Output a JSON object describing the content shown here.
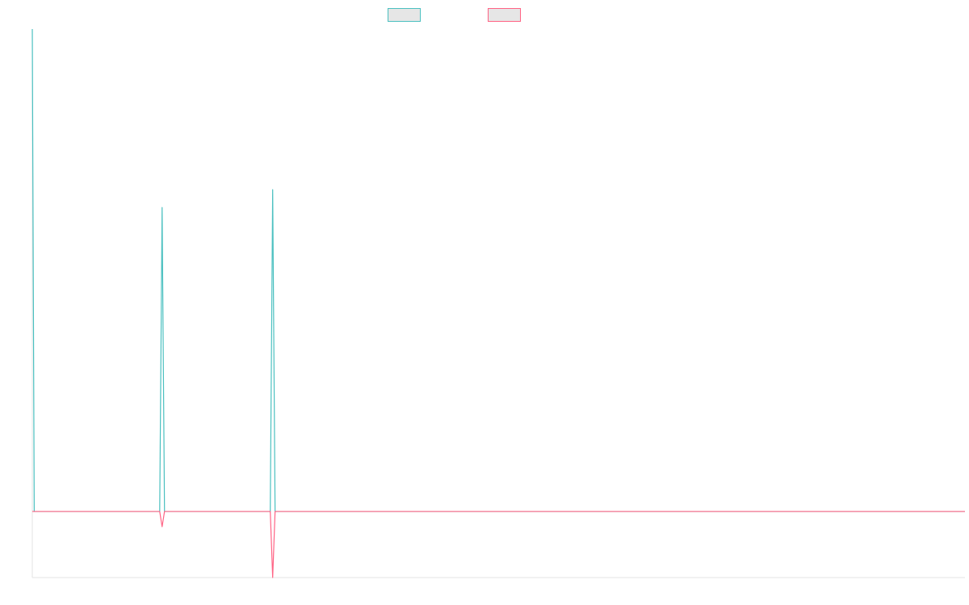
{
  "chart_data": {
    "type": "line",
    "title": "",
    "xlabel": "",
    "ylabel": "",
    "grid": false,
    "legend": "top-center",
    "xlim": [
      0,
      388
    ],
    "ylim": [
      -1.0,
      7.3
    ],
    "series": [
      {
        "name": "",
        "color": "#4bc0c0",
        "fill": "#e6e6e6",
        "points": [
          [
            0,
            7.3
          ],
          [
            0.8,
            0
          ],
          [
            1.6,
            0
          ],
          [
            53,
            0
          ],
          [
            54,
            4.6
          ],
          [
            55,
            0
          ],
          [
            99,
            0
          ],
          [
            100,
            4.87
          ],
          [
            101,
            0
          ],
          [
            388,
            0
          ]
        ]
      },
      {
        "name": "",
        "color": "#ff6384",
        "fill": "#e6e6e6",
        "points": [
          [
            0,
            0
          ],
          [
            53,
            0
          ],
          [
            54,
            -0.23
          ],
          [
            55,
            0
          ],
          [
            99,
            0
          ],
          [
            100,
            -1.0
          ],
          [
            101,
            0
          ],
          [
            388,
            0
          ]
        ]
      }
    ]
  }
}
